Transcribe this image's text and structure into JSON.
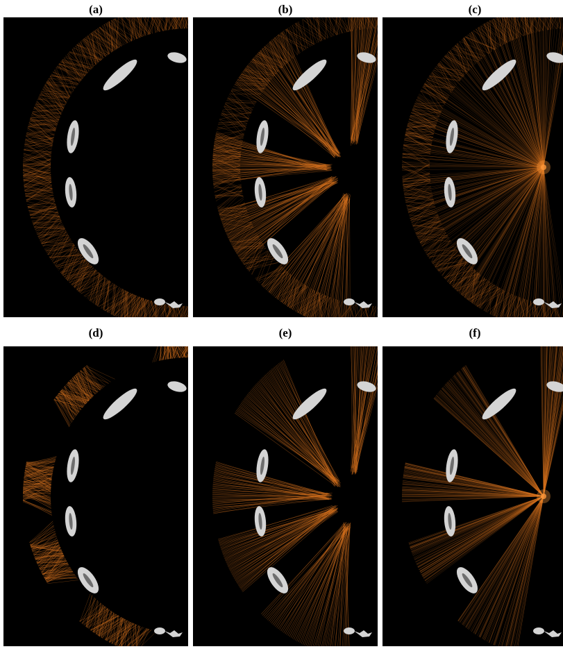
{
  "figure": {
    "panels": [
      {
        "id": "a",
        "label": "(a)",
        "mode": "ring"
      },
      {
        "id": "b",
        "label": "(b)",
        "mode": "fans"
      },
      {
        "id": "c",
        "label": "(c)",
        "mode": "ring-converge"
      },
      {
        "id": "d",
        "label": "(d)",
        "mode": "segments"
      },
      {
        "id": "e",
        "label": "(e)",
        "mode": "segment-fans"
      },
      {
        "id": "f",
        "label": "(f)",
        "mode": "segment-converge"
      }
    ],
    "colors": {
      "background": "#000000",
      "ray": "#d9731f",
      "ray_bright": "#ff9a3c",
      "implant": "#d4d4d4"
    }
  }
}
